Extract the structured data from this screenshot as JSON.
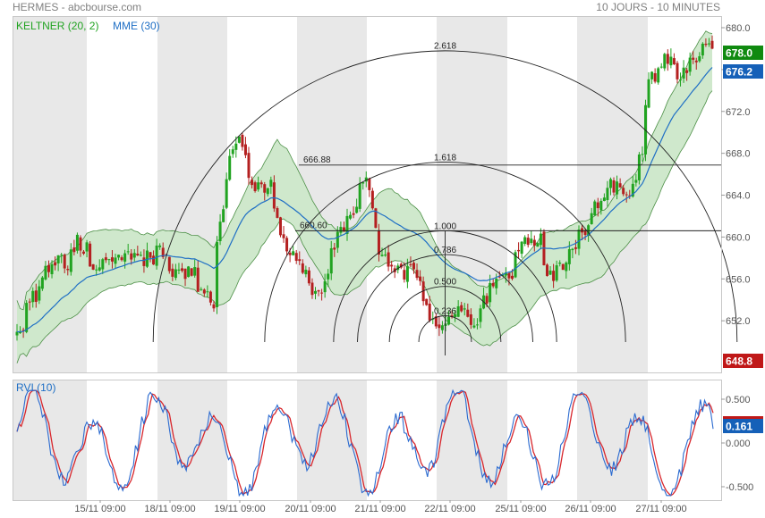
{
  "header": {
    "title": "HERMES - abcbourse.com",
    "period": "10 JOURS - 10 MINUTES"
  },
  "main_panel": {
    "legend_keltner": "KELTNER (20, 2)",
    "legend_mme": "MME (30)",
    "badges": {
      "last": "678.0",
      "mme": "676.2",
      "low": "648.8"
    }
  },
  "rvi_panel": {
    "legend": "RVI (10)",
    "badge": "0.161"
  },
  "colors": {
    "up": "#21a321",
    "down": "#b42020",
    "band_fill": "#cfe8cc",
    "band_line": "#4c8f46",
    "mme": "#1f6fc5",
    "rvi_blue": "#2a6ad0",
    "rvi_red": "#d8262c",
    "shade": "#e8e8e8",
    "badge_green": "#108a10",
    "badge_blue": "#1560b8",
    "badge_red": "#c01818"
  },
  "chart_data": [
    {
      "type": "candlestick",
      "title": "HERMES - abcbourse.com",
      "y_ticks": [
        "680.0",
        "676.0",
        "672.0",
        "668.0",
        "664.0",
        "660.0",
        "656.0",
        "652.0"
      ],
      "ylim": [
        648.8,
        681.0
      ],
      "x_ticks": [
        "15/11 09:00",
        "18/11 09:00",
        "19/11 09:00",
        "20/11 09:00",
        "21/11 09:00",
        "22/11 09:00",
        "25/11 09:00",
        "26/11 09:00",
        "27/11 09:00"
      ],
      "days": 10,
      "day_shading": "alternate days shaded",
      "grid": false,
      "close_path": [
        [
          0,
          650.5
        ],
        [
          0.25,
          654.0
        ],
        [
          0.5,
          657.5
        ],
        [
          0.75,
          657.5
        ],
        [
          1.0,
          659.5
        ],
        [
          1.25,
          657.0
        ],
        [
          1.5,
          658.5
        ],
        [
          1.75,
          658.0
        ],
        [
          2.0,
          657.8
        ],
        [
          2.25,
          658.5
        ],
        [
          2.5,
          656.0
        ],
        [
          2.75,
          656.5
        ],
        [
          3.0,
          654.5
        ],
        [
          3.1,
          653.0
        ],
        [
          3.2,
          661.0
        ],
        [
          3.35,
          667.0
        ],
        [
          3.5,
          670.0
        ],
        [
          3.65,
          666.5
        ],
        [
          3.8,
          664.5
        ],
        [
          4.0,
          665.0
        ],
        [
          4.2,
          660.0
        ],
        [
          4.45,
          657.5
        ],
        [
          4.7,
          654.5
        ],
        [
          4.9,
          656.0
        ],
        [
          5.0,
          659.0
        ],
        [
          5.25,
          662.0
        ],
        [
          5.5,
          665.5
        ],
        [
          5.75,
          659.0
        ],
        [
          6.0,
          656.5
        ],
        [
          6.25,
          657.0
        ],
        [
          6.5,
          653.0
        ],
        [
          6.75,
          651.5
        ],
        [
          7.0,
          652.5
        ],
        [
          7.25,
          652.0
        ],
        [
          7.5,
          655.0
        ],
        [
          7.75,
          656.0
        ],
        [
          8.0,
          659.0
        ],
        [
          8.25,
          660.0
        ],
        [
          8.4,
          656.5
        ],
        [
          8.6,
          657.0
        ],
        [
          8.8,
          659.5
        ],
        [
          9.0,
          660.5
        ],
        [
          9.25,
          664.0
        ],
        [
          9.5,
          665.0
        ],
        [
          9.7,
          664.5
        ],
        [
          9.85,
          667.0
        ],
        [
          10.0,
          675.0
        ],
        [
          10.25,
          677.0
        ],
        [
          10.5,
          675.5
        ],
        [
          10.75,
          677.5
        ],
        [
          11.0,
          678.0
        ]
      ],
      "keltner_channel": {
        "period": 20,
        "multiplier": 2
      },
      "mme": {
        "period": 30
      },
      "last": 678.0,
      "mme_last": 676.2,
      "period_low": 648.8,
      "fibonacci": {
        "type": "arcs + levels",
        "arc_labels": [
          "2.618",
          "1.618",
          "1.000",
          "0.786",
          "0.500",
          "0.236"
        ],
        "arc_radius_ratios": [
          2.618,
          1.618,
          1.0,
          0.786,
          0.5,
          0.236
        ],
        "level_lines": [
          {
            "label": "666.88",
            "price": 666.88
          },
          {
            "label": "660.60",
            "price": 660.6
          }
        ]
      }
    },
    {
      "type": "line",
      "title": "RVI (10)",
      "y_ticks": [
        "0.500",
        "0.000",
        "-0.500"
      ],
      "ylim": [
        -0.68,
        0.72
      ],
      "series": [
        {
          "name": "RVI (10)",
          "color": "#2a6ad0"
        },
        {
          "name": "signal",
          "color": "#d8262c"
        }
      ],
      "last": 0.161
    }
  ]
}
